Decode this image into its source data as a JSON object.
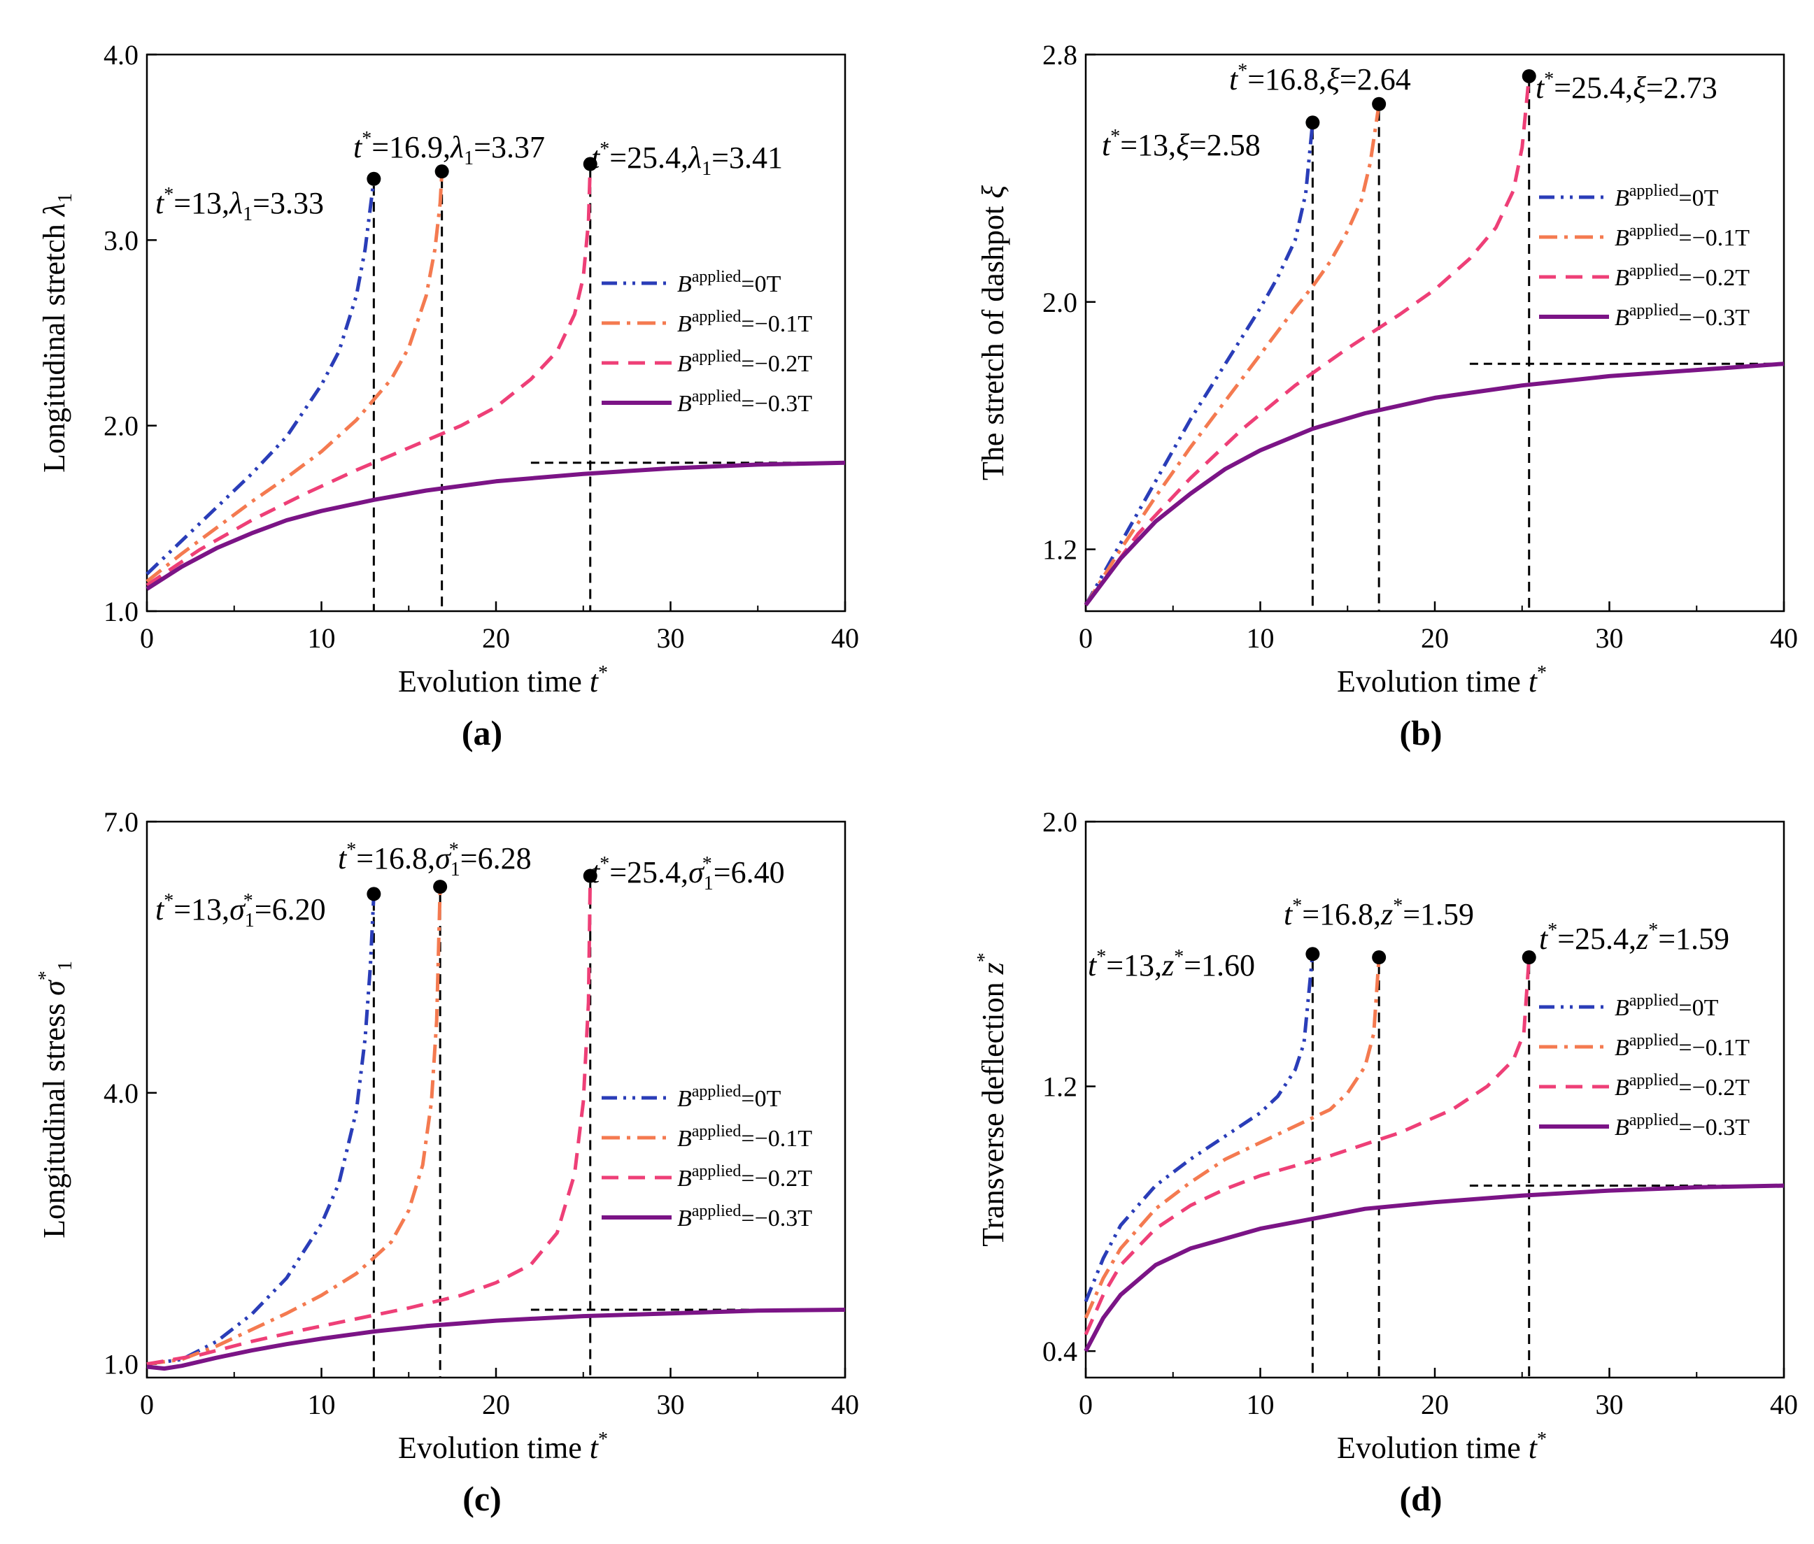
{
  "figure": {
    "xlabel_text": "Evolution time ",
    "xlabel_var": "t",
    "legend_prefix": "B",
    "legend_sup": "applied",
    "legend_suffixes": [
      "=0T",
      "=−0.1T",
      "=−0.2T",
      "=−0.3T"
    ],
    "colors": {
      "0T": "#2a3db8",
      "-0.1T": "#f47a50",
      "-0.2T": "#ee3f77",
      "-0.3T": "#7b1486",
      "marker": "#000000",
      "asymptote": "#000000"
    }
  },
  "chart_data": [
    {
      "id": "a",
      "panel_label": "(a)",
      "type": "line",
      "ylabel_text": "Longitudinal stretch ",
      "ylabel_var": "λ",
      "ylabel_sub": "1",
      "xlim": [
        0,
        40
      ],
      "ylim": [
        1.0,
        4.0
      ],
      "xticks": [
        "0",
        "10",
        "20",
        "30",
        "40"
      ],
      "yticks": [
        "1.0",
        "2.0",
        "3.0",
        "4.0"
      ],
      "asymptote": {
        "y": 1.8,
        "x_from": 22,
        "x_to": 40
      },
      "series": [
        {
          "name": "Bapplied=0T",
          "style": "dashdotdot",
          "color": "#2a3db8",
          "x": [
            0,
            2,
            4,
            6,
            8,
            10,
            11,
            12,
            12.5,
            12.9,
            13
          ],
          "y": [
            1.2,
            1.38,
            1.56,
            1.74,
            1.94,
            2.22,
            2.4,
            2.7,
            2.95,
            3.25,
            3.33
          ]
        },
        {
          "name": "Bapplied=-0.1T",
          "style": "dashdot",
          "color": "#f47a50",
          "x": [
            0,
            2,
            4,
            6,
            8,
            10,
            12,
            14,
            15,
            16,
            16.5,
            16.8,
            16.9
          ],
          "y": [
            1.16,
            1.31,
            1.45,
            1.59,
            1.72,
            1.86,
            2.03,
            2.25,
            2.42,
            2.7,
            2.95,
            3.2,
            3.37
          ]
        },
        {
          "name": "Bapplied=-0.2T",
          "style": "dashed",
          "color": "#ee3f77",
          "x": [
            0,
            3,
            6,
            9,
            12,
            15,
            18,
            20,
            22,
            23.5,
            24.5,
            25,
            25.3,
            25.4
          ],
          "y": [
            1.14,
            1.33,
            1.49,
            1.63,
            1.76,
            1.88,
            2.0,
            2.1,
            2.25,
            2.4,
            2.6,
            2.8,
            3.1,
            3.41
          ]
        },
        {
          "name": "Bapplied=-0.3T",
          "style": "solid",
          "color": "#7b1486",
          "x": [
            0,
            2,
            4,
            6,
            8,
            10,
            13,
            16,
            20,
            25,
            30,
            35,
            40
          ],
          "y": [
            1.12,
            1.24,
            1.34,
            1.42,
            1.49,
            1.54,
            1.6,
            1.65,
            1.7,
            1.74,
            1.77,
            1.79,
            1.8
          ]
        }
      ],
      "markers": [
        {
          "x": 13,
          "y": 3.33,
          "t_value": "=13,",
          "var": "λ",
          "var_sub": "1",
          "value": "=3.33"
        },
        {
          "x": 16.9,
          "y": 3.37,
          "t_value": "=16.9,",
          "var": "λ",
          "var_sub": "1",
          "value": "=3.37"
        },
        {
          "x": 25.4,
          "y": 3.41,
          "t_value": "=25.4,",
          "var": "λ",
          "var_sub": "1",
          "value": "=3.41"
        }
      ]
    },
    {
      "id": "b",
      "panel_label": "(b)",
      "type": "line",
      "ylabel_text": "The stretch of dashpot ",
      "ylabel_var": "ξ",
      "ylabel_sub": "",
      "xlim": [
        0,
        40
      ],
      "ylim": [
        1.0,
        2.8
      ],
      "xticks": [
        "0",
        "10",
        "20",
        "30",
        "40"
      ],
      "yticks": [
        "1.2",
        "2.0",
        "2.8"
      ],
      "ytick_values": [
        1.2,
        2.0,
        2.8
      ],
      "asymptote": {
        "y": 1.8,
        "x_from": 22,
        "x_to": 40
      },
      "series": [
        {
          "name": "Bapplied=0T",
          "style": "dashdotdot",
          "color": "#2a3db8",
          "x": [
            0,
            2,
            4,
            6,
            8,
            10,
            11,
            12,
            12.6,
            13
          ],
          "y": [
            1.02,
            1.22,
            1.42,
            1.62,
            1.8,
            1.98,
            2.08,
            2.2,
            2.35,
            2.58
          ]
        },
        {
          "name": "Bapplied=-0.1T",
          "style": "dashdot",
          "color": "#f47a50",
          "x": [
            0,
            2,
            4,
            6,
            8,
            10,
            12,
            13,
            14,
            15,
            15.8,
            16.3,
            16.8
          ],
          "y": [
            1.02,
            1.2,
            1.37,
            1.53,
            1.68,
            1.83,
            1.98,
            2.05,
            2.13,
            2.23,
            2.33,
            2.45,
            2.64
          ]
        },
        {
          "name": "Bapplied=-0.2T",
          "style": "dashed",
          "color": "#ee3f77",
          "x": [
            0,
            3,
            6,
            9,
            12,
            15,
            18,
            20,
            22,
            23.5,
            24.5,
            25,
            25.4
          ],
          "y": [
            1.02,
            1.25,
            1.43,
            1.59,
            1.73,
            1.85,
            1.96,
            2.04,
            2.14,
            2.24,
            2.36,
            2.5,
            2.73
          ]
        },
        {
          "name": "Bapplied=-0.3T",
          "style": "solid",
          "color": "#7b1486",
          "x": [
            0,
            2,
            4,
            6,
            8,
            10,
            13,
            16,
            20,
            25,
            30,
            35,
            40
          ],
          "y": [
            1.02,
            1.17,
            1.29,
            1.38,
            1.46,
            1.52,
            1.59,
            1.64,
            1.69,
            1.73,
            1.76,
            1.78,
            1.8
          ]
        }
      ],
      "markers": [
        {
          "x": 13,
          "y": 2.58,
          "t_value": "=13,",
          "var": "ξ",
          "var_sub": "",
          "value": "=2.58"
        },
        {
          "x": 16.8,
          "y": 2.64,
          "t_value": "=16.8,",
          "var": "ξ",
          "var_sub": "",
          "value": "=2.64"
        },
        {
          "x": 25.4,
          "y": 2.73,
          "t_value": "=25.4,",
          "var": "ξ",
          "var_sub": "",
          "value": "=2.73"
        }
      ]
    },
    {
      "id": "c",
      "panel_label": "(c)",
      "type": "line",
      "ylabel_text": "Longitudinal stress ",
      "ylabel_var": "σ",
      "ylabel_sub": "1",
      "ylabel_sup": "*",
      "xlim": [
        0,
        40
      ],
      "ylim": [
        0.85,
        7.0
      ],
      "xticks": [
        "0",
        "10",
        "20",
        "30",
        "40"
      ],
      "yticks": [
        "1.0",
        "4.0",
        "7.0"
      ],
      "ytick_values": [
        1.0,
        4.0,
        7.0
      ],
      "asymptote": {
        "y": 1.6,
        "x_from": 22,
        "x_to": 40
      },
      "series": [
        {
          "name": "Bapplied=0T",
          "style": "dashdotdot",
          "color": "#2a3db8",
          "x": [
            0,
            2,
            4,
            6,
            8,
            10,
            11,
            12,
            12.5,
            12.8,
            13
          ],
          "y": [
            1.0,
            1.05,
            1.25,
            1.55,
            1.95,
            2.55,
            3.0,
            3.8,
            4.6,
            5.4,
            6.2
          ]
        },
        {
          "name": "Bapplied=-0.1T",
          "style": "dashdot",
          "color": "#f47a50",
          "x": [
            0,
            2,
            4,
            6,
            8,
            10,
            12,
            14,
            15,
            15.8,
            16.3,
            16.6,
            16.8
          ],
          "y": [
            1.0,
            1.05,
            1.2,
            1.38,
            1.56,
            1.76,
            2.0,
            2.35,
            2.7,
            3.2,
            3.9,
            4.8,
            6.28
          ]
        },
        {
          "name": "Bapplied=-0.2T",
          "style": "dashed",
          "color": "#ee3f77",
          "x": [
            0,
            3,
            6,
            9,
            12,
            15,
            18,
            20,
            22,
            23.5,
            24.5,
            25,
            25.3,
            25.4
          ],
          "y": [
            1.0,
            1.1,
            1.25,
            1.38,
            1.5,
            1.62,
            1.76,
            1.9,
            2.1,
            2.45,
            3.1,
            3.9,
            5.0,
            6.4
          ]
        },
        {
          "name": "Bapplied=-0.3T",
          "style": "solid",
          "color": "#7b1486",
          "x": [
            0,
            1,
            2,
            4,
            6,
            8,
            10,
            13,
            16,
            20,
            25,
            30,
            35,
            40
          ],
          "y": [
            0.97,
            0.95,
            0.98,
            1.07,
            1.15,
            1.22,
            1.28,
            1.36,
            1.42,
            1.48,
            1.53,
            1.56,
            1.59,
            1.6
          ]
        }
      ],
      "markers": [
        {
          "x": 13,
          "y": 6.2,
          "t_value": "=13,",
          "var": "σ",
          "var_sub": "1",
          "value": "=6.20"
        },
        {
          "x": 16.8,
          "y": 6.28,
          "t_value": "=16.8,",
          "var": "σ",
          "var_sub": "1",
          "value": "=6.28"
        },
        {
          "x": 25.4,
          "y": 6.4,
          "t_value": "=25.4,",
          "var": "σ",
          "var_sub": "1",
          "value": "=6.40"
        }
      ]
    },
    {
      "id": "d",
      "panel_label": "(d)",
      "type": "line",
      "ylabel_text": "Transverse deflection ",
      "ylabel_var": "z",
      "ylabel_sub": "",
      "ylabel_sup": "*",
      "xlim": [
        0,
        40
      ],
      "ylim": [
        0.32,
        2.0
      ],
      "xticks": [
        "0",
        "10",
        "20",
        "30",
        "40"
      ],
      "yticks": [
        "0.4",
        "1.2",
        "2.0"
      ],
      "ytick_values": [
        0.4,
        1.2,
        2.0
      ],
      "asymptote": {
        "y": 0.9,
        "x_from": 22,
        "x_to": 40
      },
      "series": [
        {
          "name": "Bapplied=0T",
          "style": "dashdotdot",
          "color": "#2a3db8",
          "x": [
            0,
            1,
            2,
            4,
            6,
            8,
            10,
            11,
            12,
            12.5,
            13
          ],
          "y": [
            0.55,
            0.68,
            0.78,
            0.9,
            0.98,
            1.05,
            1.12,
            1.17,
            1.25,
            1.33,
            1.6
          ]
        },
        {
          "name": "Bapplied=-0.1T",
          "style": "dashdot",
          "color": "#f47a50",
          "x": [
            0,
            1,
            2,
            4,
            6,
            8,
            10,
            12,
            14,
            15,
            16,
            16.5,
            16.8
          ],
          "y": [
            0.5,
            0.62,
            0.71,
            0.83,
            0.91,
            0.98,
            1.03,
            1.08,
            1.13,
            1.18,
            1.26,
            1.36,
            1.59
          ]
        },
        {
          "name": "Bapplied=-0.2T",
          "style": "dashed",
          "color": "#ee3f77",
          "x": [
            0,
            1,
            2,
            4,
            6,
            8,
            10,
            14,
            18,
            21,
            23,
            24.5,
            25.1,
            25.4
          ],
          "y": [
            0.45,
            0.57,
            0.66,
            0.77,
            0.84,
            0.89,
            0.93,
            0.99,
            1.06,
            1.13,
            1.2,
            1.28,
            1.36,
            1.59
          ]
        },
        {
          "name": "Bapplied=-0.3T",
          "style": "solid",
          "color": "#7b1486",
          "x": [
            0,
            1,
            2,
            4,
            6,
            8,
            10,
            13,
            16,
            20,
            25,
            30,
            35,
            40
          ],
          "y": [
            0.4,
            0.5,
            0.57,
            0.66,
            0.71,
            0.74,
            0.77,
            0.8,
            0.83,
            0.85,
            0.87,
            0.885,
            0.895,
            0.9
          ]
        }
      ],
      "markers": [
        {
          "x": 13,
          "y": 1.6,
          "t_value": "=13,",
          "var": "z",
          "var_sub": "",
          "var_sup": "*",
          "value": "=1.60"
        },
        {
          "x": 16.8,
          "y": 1.59,
          "t_value": "=16.8,",
          "var": "z",
          "var_sub": "",
          "var_sup": "*",
          "value": "=1.59"
        },
        {
          "x": 25.4,
          "y": 1.59,
          "t_value": "=25.4,",
          "var": "z",
          "var_sub": "",
          "var_sup": "*",
          "value": "=1.59"
        }
      ]
    }
  ]
}
